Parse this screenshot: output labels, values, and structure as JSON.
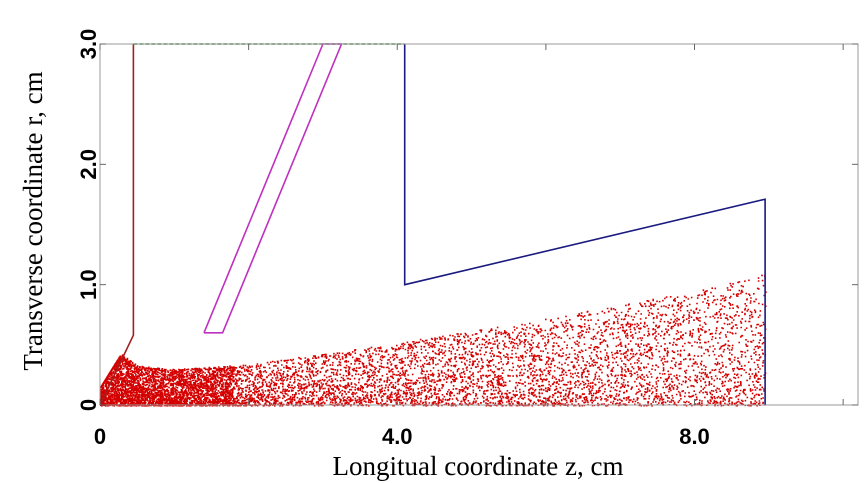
{
  "chart_data": {
    "type": "scatter",
    "title": "",
    "xlabel": "Longitual coordinate z, cm",
    "ylabel": "Transverse coordinate r, cm",
    "xlim": [
      0,
      10.2
    ],
    "ylim": [
      0,
      3.0
    ],
    "x_ticks": [
      {
        "value": 0,
        "label": "0"
      },
      {
        "value": 4.0,
        "label": "4.0"
      },
      {
        "value": 8.0,
        "label": "8.0"
      }
    ],
    "y_ticks": [
      {
        "value": 0,
        "label": "0"
      },
      {
        "value": 1.0,
        "label": "1.0"
      },
      {
        "value": 2.0,
        "label": "2.0"
      },
      {
        "value": 3.0,
        "label": "3.0"
      }
    ],
    "minor_x_ticks": [
      2.0,
      6.0,
      10.0
    ],
    "grid": false,
    "colors": {
      "particles": "#d40000",
      "left_boundary": "#a02020",
      "right_boundary": "#1a1a80",
      "inner_electrode": "#c030c0",
      "top_boundary": "#208020"
    },
    "lines": [
      {
        "id": "left_boundary",
        "style": "solid",
        "x": [
          0.0,
          0.45,
          0.45
        ],
        "y": [
          0.0,
          0.58,
          3.0
        ]
      },
      {
        "id": "top_boundary",
        "style": "dashed",
        "x": [
          0.45,
          4.1
        ],
        "y": [
          3.0,
          3.0
        ]
      },
      {
        "id": "right_boundary",
        "style": "solid",
        "x": [
          4.1,
          4.1,
          8.95,
          8.95
        ],
        "y": [
          3.0,
          1.0,
          1.71,
          0.0
        ]
      },
      {
        "id": "inner_electrode",
        "style": "solid",
        "x": [
          1.4,
          3.0,
          3.25,
          1.65,
          1.4
        ],
        "y": [
          0.6,
          3.0,
          3.0,
          0.6,
          0.6
        ]
      }
    ],
    "scatter_envelope": {
      "x": [
        0,
        0.5,
        1.0,
        2.0,
        4.0,
        6.0,
        8.0,
        8.95
      ],
      "r_max": [
        0.55,
        0.33,
        0.3,
        0.34,
        0.52,
        0.72,
        0.95,
        1.1
      ]
    },
    "point_count": 9000
  }
}
